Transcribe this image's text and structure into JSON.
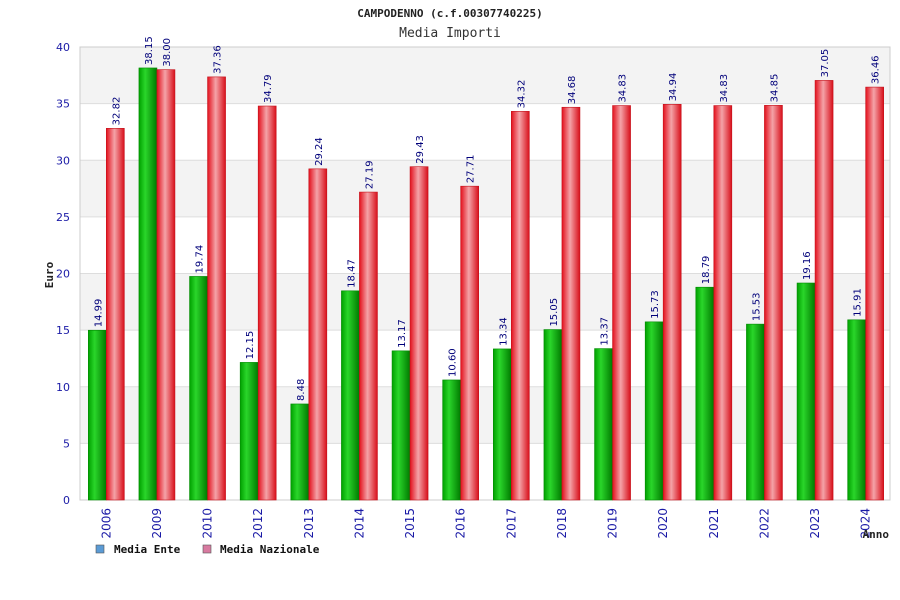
{
  "chart_data": {
    "type": "bar",
    "title": "CAMPODENNO (c.f.00307740225)",
    "subtitle": "Media Importi",
    "xlabel": "Anno",
    "ylabel": "Euro",
    "ylim": [
      0,
      40
    ],
    "yticks": [
      0,
      5,
      10,
      15,
      20,
      25,
      30,
      35,
      40
    ],
    "grid": true,
    "legend_position": "bottom-left",
    "categories": [
      "2006",
      "2009",
      "2010",
      "2012",
      "2013",
      "2014",
      "2015",
      "2016",
      "2017",
      "2018",
      "2019",
      "2020",
      "2021",
      "2022",
      "2023",
      "2024"
    ],
    "series": [
      {
        "name": "Media Ente",
        "color": "#00b000",
        "legend_color": "#5b9bd5",
        "values": [
          14.99,
          38.15,
          19.74,
          12.15,
          8.48,
          18.47,
          13.17,
          10.6,
          13.34,
          15.05,
          13.37,
          15.73,
          18.79,
          15.53,
          19.16,
          15.91
        ],
        "labels": [
          "14.99",
          "38.15",
          "19.74",
          "12.15",
          "8.48",
          "18.47",
          "13.17",
          "10.60",
          "13.34",
          "15.05",
          "13.37",
          "15.73",
          "18.79",
          "15.53",
          "19.16",
          "15.91"
        ]
      },
      {
        "name": "Media Nazionale",
        "color": "#e8202a",
        "legend_color": "#d87aa0",
        "values": [
          32.82,
          38.0,
          37.36,
          34.79,
          29.24,
          27.19,
          29.43,
          27.71,
          34.32,
          34.68,
          34.83,
          34.94,
          34.83,
          34.85,
          37.05,
          36.46
        ],
        "labels": [
          "32.82",
          "38.00",
          "37.36",
          "34.79",
          "29.24",
          "27.19",
          "29.43",
          "27.71",
          "34.32",
          "34.68",
          "34.83",
          "34.94",
          "34.83",
          "34.85",
          "37.05",
          "36.46"
        ]
      }
    ]
  }
}
